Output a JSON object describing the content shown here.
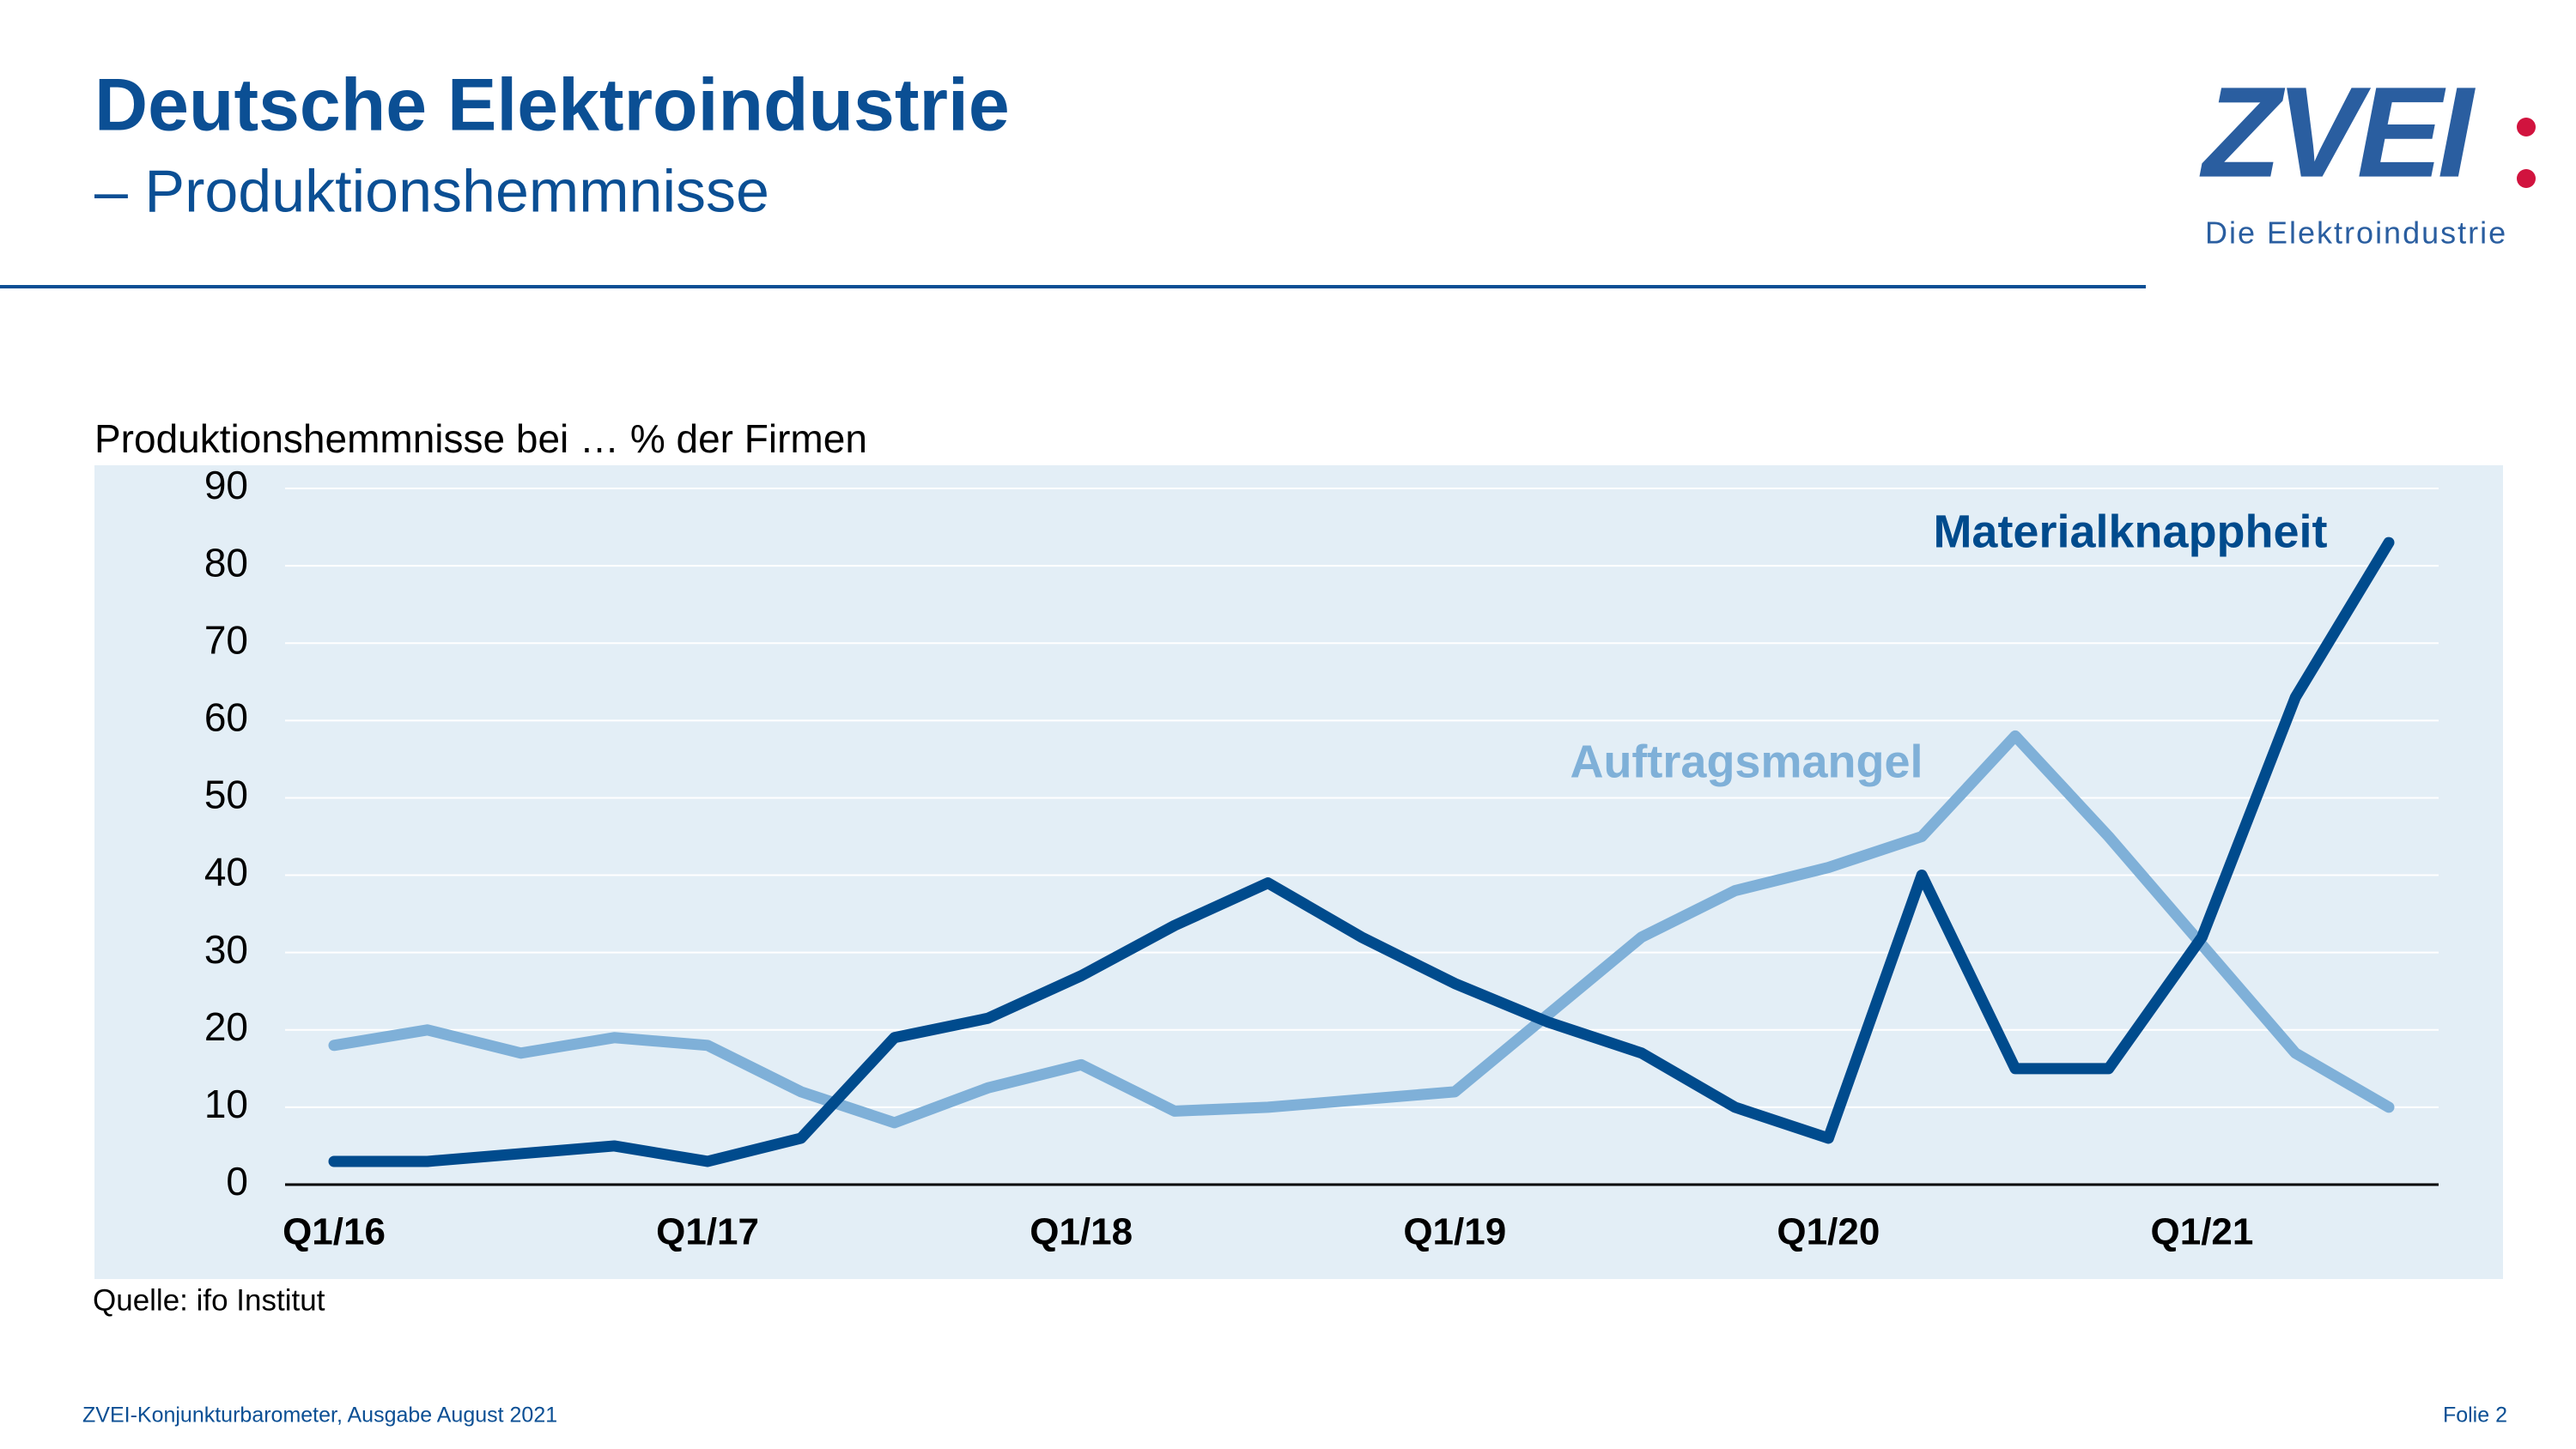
{
  "header": {
    "title": "Deutsche Elektroindustrie",
    "subtitle": "– Produktionshemmnisse"
  },
  "logo": {
    "mark": "ZVEI",
    "tagline": "Die Elektroindustrie"
  },
  "chart_data": {
    "type": "line",
    "y_label": "Produktionshemmnisse bei … % der Firmen",
    "categories": [
      "Q1/16",
      null,
      null,
      null,
      "Q1/17",
      null,
      null,
      null,
      "Q1/18",
      null,
      null,
      null,
      "Q1/19",
      null,
      null,
      null,
      "Q1/20",
      null,
      null,
      null,
      "Q1/21",
      null,
      null
    ],
    "series": [
      {
        "name": "Materialknappheit",
        "color": "#004b8d",
        "values": [
          3,
          3,
          4,
          5,
          3,
          6,
          19,
          21.5,
          27,
          33.5,
          39,
          32,
          26,
          21,
          17,
          10,
          6,
          40,
          15,
          15,
          32,
          63,
          83
        ]
      },
      {
        "name": "Auftragsmangel",
        "color": "#7fb0d8",
        "values": [
          18,
          20,
          17,
          19,
          18,
          12,
          8,
          12.5,
          15.5,
          9.5,
          10,
          11,
          12,
          22,
          32,
          38,
          41,
          45,
          58,
          45,
          31,
          17,
          10
        ]
      }
    ],
    "ylim": [
      0,
      90
    ],
    "yticks": [
      0,
      10,
      20,
      30,
      40,
      50,
      60,
      70,
      80,
      90
    ],
    "grid": true
  },
  "source": "Quelle: ifo Institut",
  "footer": {
    "left": "ZVEI-Konjunkturbarometer, Ausgabe August 2021",
    "right": "Folie 2"
  }
}
